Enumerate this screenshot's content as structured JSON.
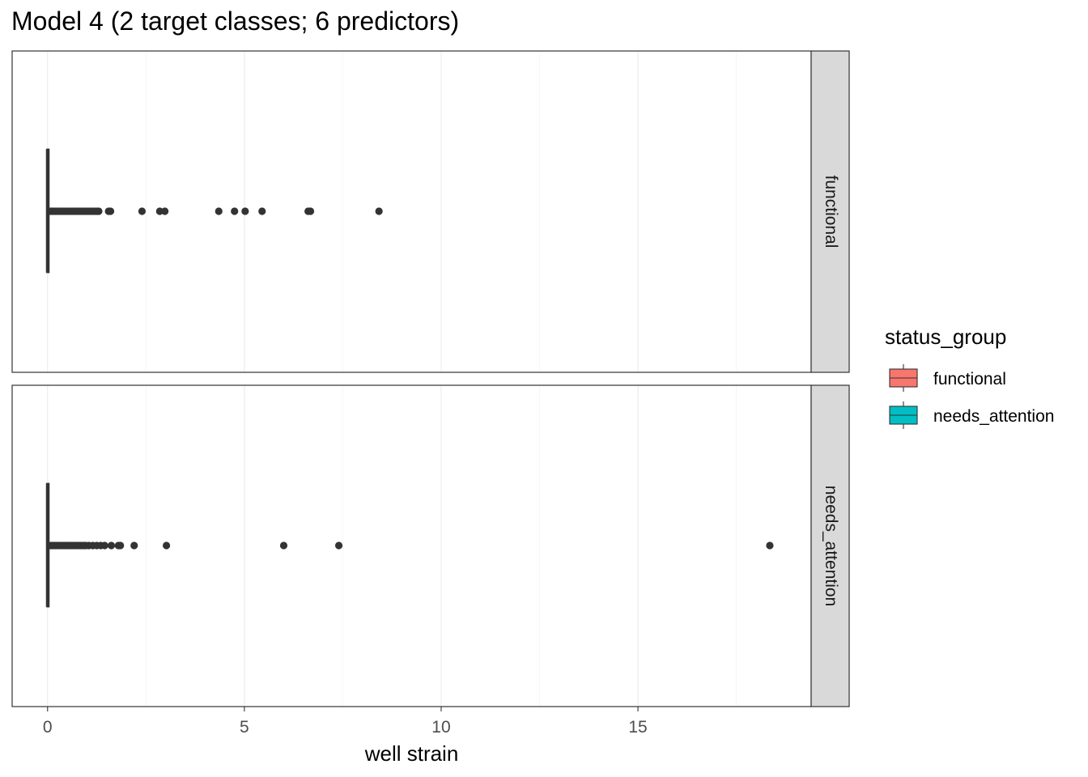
{
  "chart_data": {
    "type": "boxplot",
    "title": "Model 4 (2 target classes; 6 predictors)",
    "xlabel": "well strain",
    "ylabel": "",
    "xlim": [
      -0.9,
      19.4
    ],
    "x_ticks": [
      0,
      5,
      10,
      15
    ],
    "x_tick_labels": [
      "0",
      "5",
      "10",
      "15"
    ],
    "grid": true,
    "legend": {
      "title": "status_group",
      "position": "right",
      "entries": [
        {
          "label": "functional",
          "color": "#F8766D"
        },
        {
          "label": "needs_attention",
          "color": "#00BFC4"
        }
      ]
    },
    "facets": [
      {
        "label": "functional",
        "box": {
          "min": 0.0,
          "q1": 0.0,
          "median": 0.0,
          "q3": 0.0,
          "max": 0.05
        },
        "outliers": [
          0.08,
          0.12,
          0.17,
          0.22,
          0.28,
          0.34,
          0.4,
          0.46,
          0.52,
          0.58,
          0.64,
          0.7,
          0.76,
          0.82,
          0.88,
          0.94,
          1.0,
          1.06,
          1.12,
          1.18,
          1.24,
          1.3,
          1.55,
          1.6,
          2.4,
          2.85,
          2.98,
          4.35,
          4.75,
          5.02,
          5.45,
          6.62,
          6.68,
          8.42
        ]
      },
      {
        "label": "needs_attention",
        "box": {
          "min": 0.0,
          "q1": 0.0,
          "median": 0.0,
          "q3": 0.0,
          "max": 0.05
        },
        "outliers": [
          0.08,
          0.13,
          0.19,
          0.25,
          0.31,
          0.37,
          0.43,
          0.49,
          0.55,
          0.61,
          0.67,
          0.73,
          0.79,
          0.85,
          0.91,
          0.97,
          1.05,
          1.15,
          1.25,
          1.35,
          1.45,
          1.62,
          1.8,
          1.85,
          2.2,
          3.02,
          6.0,
          7.4,
          18.35
        ]
      }
    ]
  }
}
